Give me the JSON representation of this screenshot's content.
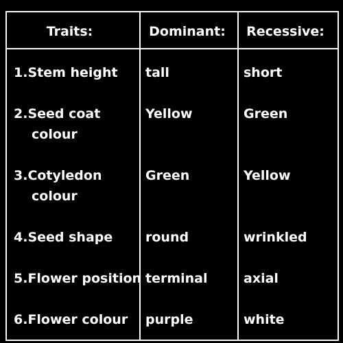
{
  "headers": {
    "traits": "Traits:",
    "dominant": "Dominant:",
    "recessive": "Recessive:"
  },
  "rows": [
    {
      "trait": [
        "1.Stem height"
      ],
      "dominant": "tall",
      "recessive": "short"
    },
    {
      "trait": [
        "2.Seed coat",
        "colour"
      ],
      "dominant": "Yellow",
      "recessive": "Green"
    },
    {
      "trait": [
        "3.Cotyledon",
        "colour"
      ],
      "dominant": "Green",
      "recessive": "Yellow"
    },
    {
      "trait": [
        "4.Seed shape"
      ],
      "dominant": "round",
      "recessive": "wrinkled"
    },
    {
      "trait": [
        "5.Flower position"
      ],
      "dominant": "terminal",
      "recessive": "axial"
    },
    {
      "trait": [
        "6.Flower colour"
      ],
      "dominant": "purple",
      "recessive": "white"
    }
  ],
  "colors": {
    "background": "#000000",
    "text": "#ffffff",
    "lines": "#ffffff"
  }
}
